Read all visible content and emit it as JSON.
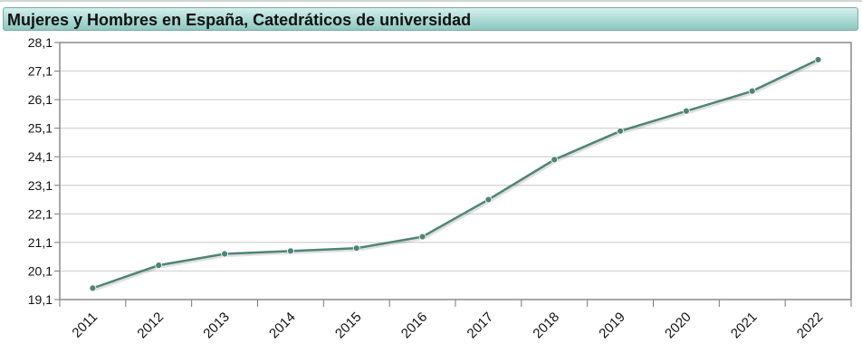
{
  "header": {
    "title": "Mujeres y Hombres en España, Catedráticos de universidad"
  },
  "colors": {
    "line": "#4e8478",
    "point": "#4e8478",
    "grid": "#d9d9d9",
    "frame": "#8a8a8a"
  },
  "chart_data": {
    "type": "line",
    "title": "Mujeres y Hombres en España, Catedráticos de universidad",
    "xlabel": "",
    "ylabel": "",
    "categories": [
      "2011",
      "2012",
      "2013",
      "2014",
      "2015",
      "2016",
      "2017",
      "2018",
      "2019",
      "2020",
      "2021",
      "2022"
    ],
    "series": [
      {
        "values": [
          19.5,
          20.3,
          20.7,
          20.8,
          20.9,
          21.3,
          22.6,
          24.0,
          25.0,
          25.7,
          26.4,
          27.5
        ]
      }
    ],
    "ylim": [
      19.1,
      28.1
    ],
    "yticks": [
      "19,1",
      "20,1",
      "21,1",
      "22,1",
      "23,1",
      "24,1",
      "25,1",
      "26,1",
      "27,1",
      "28,1"
    ],
    "grid": true,
    "legend": "none"
  }
}
